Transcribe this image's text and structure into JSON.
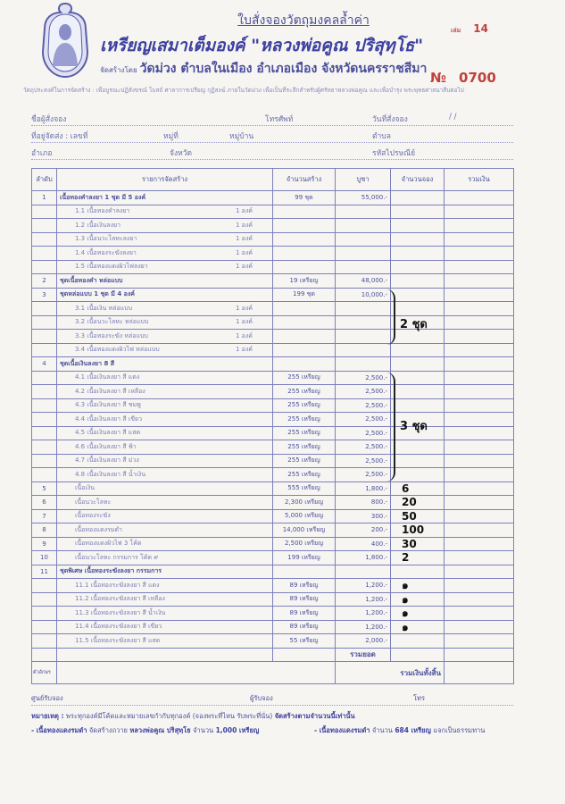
{
  "header": {
    "title": "ใบสั่งจองวัตถุมงคลล้ำค่า",
    "subtitle": "เหรียญเสมาเต็มองค์ \"หลวงพ่อคูณ ปริสุทฺโธ\"",
    "organizer_label": "จัดสร้างโดย",
    "organizer": "วัดม่วง ตำบลในเมือง อำเภอเมือง จังหวัดนครราชสีมา",
    "book_label": "เล่ม",
    "book_no": "14",
    "serial_label": "№",
    "serial_no": "0700",
    "purpose": "วัตถุประสงค์ในการจัดสร้าง : เพื่อบูรณะปฏิสังขรณ์ โบสถ์ ศาลาการเปรียญ กุฏิสงฆ์ ภายในวัดม่วง เพื่อเป็นที่ระลึกสำหรับผู้ศรัทธาหลวงพ่อคูณ และเพื่อบำรุง พระพุทธศาสนาสืบต่อไป"
  },
  "form": {
    "name_label": "ชื่อผู้สั่งจอง",
    "phone_label": "โทรศัพท์",
    "date_label": "วันที่สั่งจอง",
    "date_sep": "/          /",
    "address_label": "ที่อยู่จัดส่ง : เลขที่",
    "moo_label": "หมู่ที่",
    "village_label": "หมู่บ้าน",
    "subdistrict_label": "ตำบล",
    "district_label": "อำเภอ",
    "province_label": "จังหวัด",
    "postcode_label": "รหัสไปรษณีย์"
  },
  "table": {
    "headers": [
      "ลำดับ",
      "รายการจัดสร้าง",
      "จำนวนสร้าง",
      "บูชา",
      "จำนวนจอง",
      "รวมเงิน"
    ],
    "rows": [
      {
        "no": "1",
        "item": "เนื้อทองคำลงยา 1 ชุด มี 5 องค์",
        "built": "99 ชุด",
        "price": "55,000.-",
        "main": true
      },
      {
        "item": "1.1 เนื้อทองคำลงยา",
        "qty": "1 องค์"
      },
      {
        "item": "1.2 เนื้อเงินลงยา",
        "qty": "1 องค์"
      },
      {
        "item": "1.3 เนื้อนวะโลหะลงยา",
        "qty": "1 องค์"
      },
      {
        "item": "1.4 เนื้อทองระฆังลงยา",
        "qty": "1 องค์"
      },
      {
        "item": "1.5 เนื้อทองแดงผิวไฟลงยา",
        "qty": "1 องค์"
      },
      {
        "no": "2",
        "item": "ชุดเนื้อทองคำ หล่อแบบ",
        "built": "19 เหรียญ",
        "price": "48,000.-",
        "main": true
      },
      {
        "no": "3",
        "item": "ชุดหล่อแบบ 1 ชุด มี 4 องค์",
        "built": "199 ชุด",
        "price": "10,000.-",
        "main": true
      },
      {
        "item": "3.1 เนื้อเงิน หล่อแบบ",
        "qty": "1 องค์"
      },
      {
        "item": "3.2 เนื้อนวะโลหะ หล่อแบบ",
        "qty": "1 องค์"
      },
      {
        "item": "3.3 เนื้อทองระฆัง หล่อแบบ",
        "qty": "1 องค์"
      },
      {
        "item": "3.4 เนื้อทองแดงผิวไฟ หล่อแบบ",
        "qty": "1 องค์"
      },
      {
        "no": "4",
        "item": "ชุดเนื้อเงินลงยา 8 สี",
        "main": true
      },
      {
        "item": "4.1 เนื้อเงินลงยา สี แดง",
        "built": "255 เหรียญ",
        "price": "2,500.-"
      },
      {
        "item": "4.2 เนื้อเงินลงยา สี เหลือง",
        "built": "255 เหรียญ",
        "price": "2,500.-"
      },
      {
        "item": "4.3 เนื้อเงินลงยา สี ชมพู",
        "built": "255 เหรียญ",
        "price": "2,500.-"
      },
      {
        "item": "4.4 เนื้อเงินลงยา สี เขียว",
        "built": "255 เหรียญ",
        "price": "2,500.-"
      },
      {
        "item": "4.5 เนื้อเงินลงยา สี แสด",
        "built": "255 เหรียญ",
        "price": "2,500.-"
      },
      {
        "item": "4.6 เนื้อเงินลงยา สี ฟ้า",
        "built": "255 เหรียญ",
        "price": "2,500.-"
      },
      {
        "item": "4.7 เนื้อเงินลงยา สี ม่วง",
        "built": "255 เหรียญ",
        "price": "2,500.-"
      },
      {
        "item": "4.8 เนื้อเงินลงยา สี น้ำเงิน",
        "built": "255 เหรียญ",
        "price": "2,500.-"
      },
      {
        "no": "5",
        "item": "เนื้อเงิน",
        "built": "555 เหรียญ",
        "price": "1,800.-",
        "reserved": "6"
      },
      {
        "no": "6",
        "item": "เนื้อนวะโลหะ",
        "built": "2,300 เหรียญ",
        "price": "800.-",
        "reserved": "20"
      },
      {
        "no": "7",
        "item": "เนื้อทองระฆัง",
        "built": "5,000 เหรียญ",
        "price": "300.-",
        "reserved": "50"
      },
      {
        "no": "8",
        "item": "เนื้อทองแดงรมดำ",
        "built": "14,000 เหรียญ",
        "price": "200.-",
        "reserved": "100"
      },
      {
        "no": "9",
        "item": "เนื้อทองแดงผิวไฟ 3 โค้ด",
        "built": "2,500 เหรียญ",
        "price": "400.-",
        "reserved": "30"
      },
      {
        "no": "10",
        "item": "เนื้อนวะโลหะ กรรมการ โค้ด ๙",
        "built": "199 เหรียญ",
        "price": "1,800.-",
        "reserved": "2"
      },
      {
        "no": "11",
        "item": "ชุดพิเศษ เนื้อทองระฆังลงยา กรรมการ",
        "main": true
      },
      {
        "item": "11.1 เนื้อทองระฆังลงยา สี แดง",
        "built": "89 เหรียญ",
        "price": "1,200.-",
        "reserved": "๑"
      },
      {
        "item": "11.2 เนื้อทองระฆังลงยา สี เหลือง",
        "built": "89 เหรียญ",
        "price": "1,200.-",
        "reserved": "๑"
      },
      {
        "item": "11.3 เนื้อทองระฆังลงยา สี น้ำเงิน",
        "built": "89 เหรียญ",
        "price": "1,200.-",
        "reserved": "๑"
      },
      {
        "item": "11.4 เนื้อทองระฆังลงยา สี เขียว",
        "built": "89 เหรียญ",
        "price": "1,200.-",
        "reserved": "๑"
      },
      {
        "item": "11.5 เนื้อทองระฆังลงยา สี แสด",
        "built": "55 เหรียญ",
        "price": "2,000.-"
      }
    ],
    "subtotal_label": "รวมยอด",
    "in_words_label": "ตัวอักษร",
    "grand_total_label": "รวมเงินทั้งสิ้น"
  },
  "handwritten": {
    "group_3": "2 ชุด",
    "group_4": "3 ชุด"
  },
  "footer": {
    "center_label": "ศูนย์รับจอง",
    "receiver_label": "ผู้รับจอง",
    "phone_label": "โทร",
    "note_label": "หมายเหตุ :",
    "note_text": "พระทุกองค์มีโค้ดและหมายเลขกำกับทุกองค์ (จองพระที่ไหน รับพระที่นั่น)",
    "note_bold": "จัดสร้างตามจำนวนนี้เท่านั้น",
    "line1_a": "- เนื้อทองแดงรมดำ",
    "line1_b": "จัดสร้างถวาย",
    "line1_c": "หลวงพ่อคูณ ปริสุทฺโธ",
    "line1_d": "จำนวน",
    "line1_e": "1,000 เหรียญ",
    "line2_a": "- เนื้อทองแดงรมดำ",
    "line2_b": "จำนวน",
    "line2_c": "684 เหรียญ",
    "line2_d": "แจกเป็นธรรมทาน"
  },
  "colors": {
    "ink": "#4b4f9c",
    "serial": "#c0403e",
    "handwriting": "#111111",
    "paper": "#f6f5f1"
  }
}
